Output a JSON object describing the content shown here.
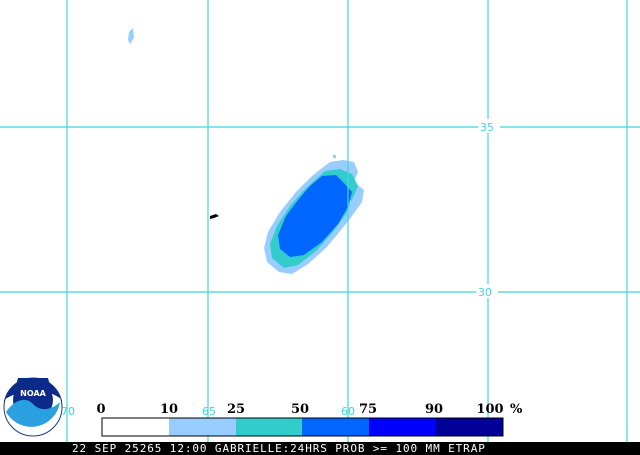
{
  "map": {
    "latitude_labels": [
      "35",
      "30"
    ],
    "longitude_labels": [
      "70",
      "65",
      "60"
    ],
    "colors": {
      "gridline": "#3fd8d8",
      "prob_10_25": "#99ccff",
      "prob_25_50": "#33cccc",
      "prob_50_75": "#0066ff",
      "prob_75_90": "#0000ff",
      "prob_90_100": "#000099"
    }
  },
  "logo": {
    "text": "NOAA"
  },
  "legend": {
    "labels": [
      "0",
      "10",
      "25",
      "50",
      "75",
      "90",
      "100"
    ],
    "unit": "%",
    "colors": [
      "#ffffff",
      "#99ccff",
      "#33cccc",
      "#0066ff",
      "#0000ff",
      "#000099"
    ]
  },
  "footer": {
    "caption": "22 SEP 25265 12:00 GABRIELLE:24HRS PROB >= 100 MM ETRAP"
  }
}
